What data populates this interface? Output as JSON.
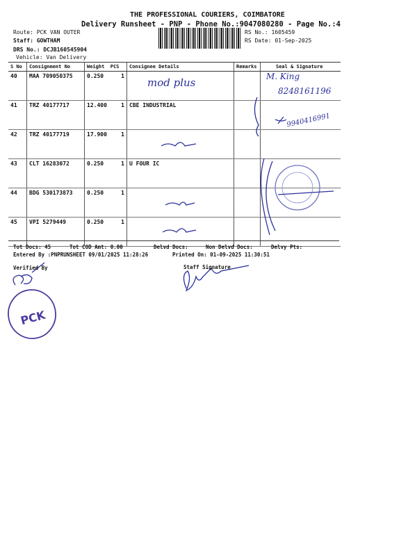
{
  "header": {
    "company": "THE PROFESSIONAL COURIERS, COIMBATORE",
    "subtitle": "Delivery Runsheet - PNP - Phone No.:9047080280 - Page No.:4",
    "route": "Route: PCK VAN OUTER",
    "staff": "Staff: GOWTHAM",
    "drs": "DRS No.: DCJB160545904",
    "vehicle": "Vehicle: Van Delivery",
    "rs_no": "RS No.: 1605459",
    "rs_date": "RS Date: 01-Sep-2025"
  },
  "table": {
    "columns": [
      "S No",
      "Consignment No",
      "Weight",
      "PCS",
      "Consignee Details",
      "Remarks",
      "Seal & Signature"
    ],
    "rows": [
      {
        "sno": "40",
        "consignment": "MAA 709050375",
        "weight": "0.250",
        "pcs": "1",
        "consignee": "",
        "remarks": ""
      },
      {
        "sno": "41",
        "consignment": "TRZ 40177717",
        "weight": "12.400",
        "pcs": "1",
        "consignee": "CBE INDUSTRIAL",
        "remarks": ""
      },
      {
        "sno": "42",
        "consignment": "TRZ 40177719",
        "weight": "17.900",
        "pcs": "1",
        "consignee": "",
        "remarks": ""
      },
      {
        "sno": "43",
        "consignment": "CLT 16283072",
        "weight": "0.250",
        "pcs": "1",
        "consignee": "U FOUR IC",
        "remarks": ""
      },
      {
        "sno": "44",
        "consignment": "BDG 530173873",
        "weight": "0.250",
        "pcs": "1",
        "consignee": "",
        "remarks": ""
      },
      {
        "sno": "45",
        "consignment": "VPI 5279449",
        "weight": "0.250",
        "pcs": "1",
        "consignee": "",
        "remarks": ""
      }
    ]
  },
  "handwriting": {
    "row40_consignee": "mod plus",
    "row40_seal_name": "M. King",
    "row40_seal_phone": "8248161196",
    "row41_seal_phone": "9940416991"
  },
  "footer": {
    "tot_docs": "Tot Docs:  45",
    "tot_cod": "Tot COD Amt:   0.00",
    "delvd": "Delvd Docs:",
    "non_delvd": "Non Delvd Docs:",
    "delvy_pts": "Delvy Pts:",
    "entered_by": "Entered By :PNPRUNSHEET 09/01/2025 11:28:26",
    "printed_on": "Printed On: 01-09-2025 11:30:51",
    "verified_by": "Verified By",
    "staff_signature": "Staff Signature",
    "stamp": "PCK"
  },
  "colors": {
    "ink": "#2a2f9a",
    "stamp": "#4a3aa0"
  }
}
